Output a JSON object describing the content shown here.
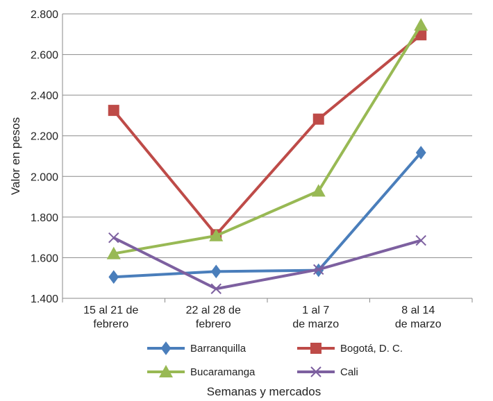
{
  "chart_data": {
    "type": "line",
    "title": "",
    "xlabel": "Semanas y mercados",
    "ylabel": "Valor en pesos",
    "categories": [
      [
        "15 al 21 de",
        "febrero"
      ],
      [
        "22 al 28 de",
        "febrero"
      ],
      [
        "1 al 7",
        "de marzo"
      ],
      [
        "8 al 14",
        "de marzo"
      ]
    ],
    "ylim": [
      1400,
      2800
    ],
    "yticks": [
      1400,
      1600,
      1800,
      2000,
      2200,
      2400,
      2600,
      2800
    ],
    "ytick_labels": [
      "1.400",
      "1.600",
      "1.800",
      "2.000",
      "2.200",
      "2.400",
      "2.600",
      "2.800"
    ],
    "grid": "horizontal",
    "legend_position": "bottom",
    "series": [
      {
        "name": "Barranquilla",
        "color": "#4a7ebb",
        "marker": "diamond",
        "values": [
          1505,
          1532,
          1538,
          2117
        ]
      },
      {
        "name": "Bogotá, D. C.",
        "color": "#be4b48",
        "marker": "square",
        "values": [
          2325,
          1713,
          2282,
          2697
        ]
      },
      {
        "name": "Bucaramanga",
        "color": "#98b954",
        "marker": "triangle",
        "values": [
          1620,
          1708,
          1928,
          2745
        ]
      },
      {
        "name": "Cali",
        "color": "#7d60a0",
        "marker": "x",
        "values": [
          1698,
          1447,
          1542,
          1685
        ]
      }
    ]
  }
}
